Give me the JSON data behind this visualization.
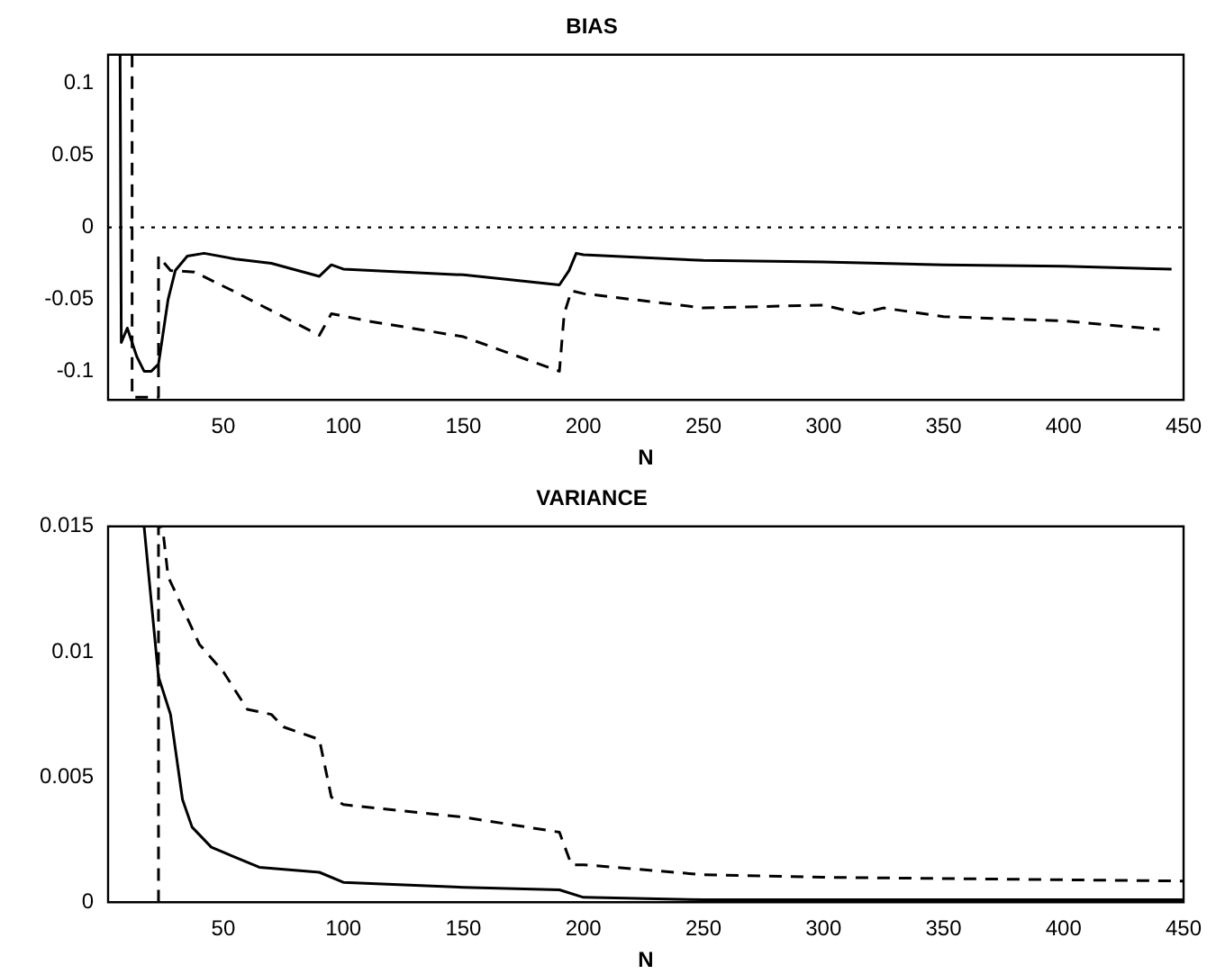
{
  "chart_data": [
    {
      "type": "line",
      "title": "BIAS",
      "xlabel": "N",
      "xlim": [
        2,
        450
      ],
      "xticks": [
        50,
        100,
        150,
        200,
        250,
        300,
        350,
        400,
        450
      ],
      "ylim": [
        -0.12,
        0.12
      ],
      "yticks": [
        -0.1,
        -0.05,
        0,
        0.05,
        0.1
      ],
      "grid": false,
      "legend": false,
      "marker": "none",
      "ref_lines": [
        {
          "axis": "y",
          "value": 0,
          "line_style": "dotted",
          "color": "#000000"
        }
      ],
      "series": [
        {
          "color": "#000000",
          "line_style": "solid",
          "x": [
            7,
            7.5,
            10,
            14,
            17,
            20,
            23,
            27,
            30,
            35,
            42,
            55,
            70,
            90,
            95,
            100,
            150,
            190,
            194,
            197,
            200,
            250,
            300,
            350,
            400,
            445
          ],
          "values": [
            0.12,
            -0.08,
            -0.07,
            -0.09,
            -0.1,
            -0.1,
            -0.095,
            -0.05,
            -0.03,
            -0.02,
            -0.018,
            -0.022,
            -0.025,
            -0.034,
            -0.026,
            -0.029,
            -0.033,
            -0.04,
            -0.03,
            -0.018,
            -0.019,
            -0.023,
            -0.024,
            -0.026,
            -0.027,
            -0.029
          ]
        },
        {
          "color": "#000000",
          "line_style": "dashed",
          "x": [
            12,
            12,
            23,
            23,
            28,
            38,
            55,
            90,
            95,
            110,
            150,
            190,
            192,
            195,
            200,
            250,
            300,
            315,
            325,
            350,
            400,
            440
          ],
          "values": [
            0.12,
            -0.118,
            -0.118,
            -0.02,
            -0.03,
            -0.031,
            -0.045,
            -0.075,
            -0.06,
            -0.065,
            -0.076,
            -0.1,
            -0.06,
            -0.044,
            -0.046,
            -0.056,
            -0.054,
            -0.06,
            -0.056,
            -0.062,
            -0.065,
            -0.071
          ]
        }
      ]
    },
    {
      "type": "line",
      "title": "VARIANCE",
      "xlabel": "N",
      "xlim": [
        2,
        450
      ],
      "xticks": [
        50,
        100,
        150,
        200,
        250,
        300,
        350,
        400,
        450
      ],
      "ylim": [
        0,
        0.015
      ],
      "yticks": [
        0,
        0.005,
        0.01,
        0.015
      ],
      "grid": false,
      "legend": false,
      "marker": "none",
      "series": [
        {
          "color": "#000000",
          "line_style": "solid",
          "x": [
            17,
            20,
            23,
            28,
            33,
            37,
            45,
            55,
            65,
            90,
            100,
            150,
            190,
            200,
            250,
            300,
            350,
            400,
            450
          ],
          "values": [
            0.015,
            0.012,
            0.009,
            0.0075,
            0.0041,
            0.003,
            0.0022,
            0.0018,
            0.0014,
            0.0012,
            0.0008,
            0.0006,
            0.0005,
            0.0002,
            0.0001,
            0.0001,
            0.0001,
            0.0001,
            0.0001
          ]
        },
        {
          "color": "#000000",
          "line_style": "dashed",
          "x": [
            23,
            23,
            24,
            25,
            27,
            40,
            50,
            60,
            70,
            75,
            90,
            95,
            100,
            150,
            190,
            195,
            200,
            250,
            300,
            450
          ],
          "values": [
            0,
            0.015,
            0.015,
            0.0147,
            0.013,
            0.0103,
            0.0092,
            0.0077,
            0.0075,
            0.007,
            0.0065,
            0.0042,
            0.0039,
            0.0034,
            0.0028,
            0.0015,
            0.0015,
            0.0011,
            0.001,
            0.00085
          ]
        }
      ]
    }
  ]
}
